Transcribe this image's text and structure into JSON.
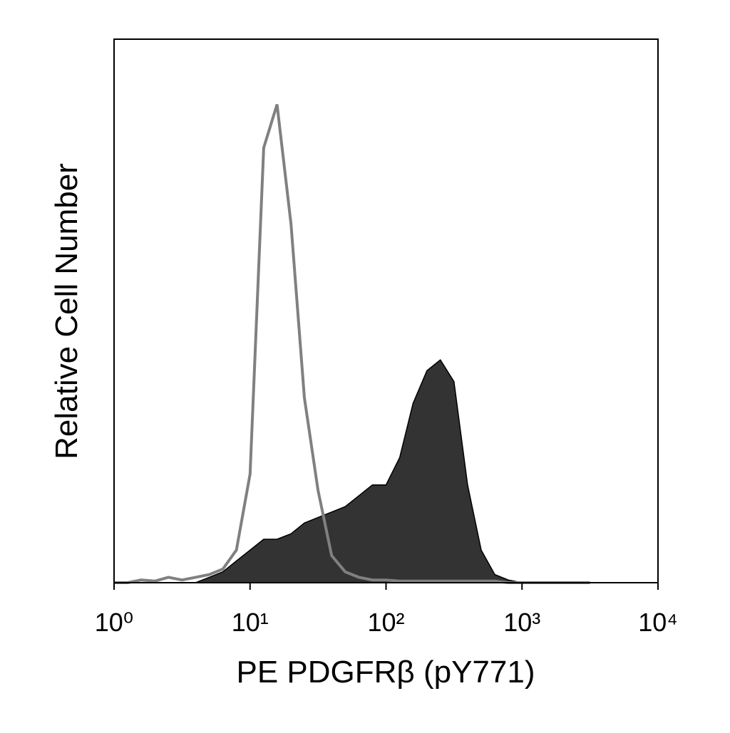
{
  "chart_data": {
    "type": "histogram-overlay",
    "xlabel": "PE PDGFRβ (pY771)",
    "ylabel": "Relative Cell Number",
    "xscale": "log",
    "xlim": [
      1,
      10000
    ],
    "ylim": [
      0,
      100
    ],
    "xticks": [
      {
        "value": 1,
        "label": "10⁰"
      },
      {
        "value": 10,
        "label": "10¹"
      },
      {
        "value": 100,
        "label": "10²"
      },
      {
        "value": 1000,
        "label": "10³"
      },
      {
        "value": 10000,
        "label": "10⁴"
      }
    ],
    "x": [
      1,
      1.26,
      1.58,
      2,
      2.51,
      3.16,
      3.98,
      5.01,
      6.31,
      7.94,
      10,
      12.6,
      15.8,
      20,
      25.1,
      31.6,
      39.8,
      50.1,
      63.1,
      79.4,
      100,
      126,
      158,
      200,
      251,
      316,
      398,
      501,
      631,
      794,
      1000,
      1260,
      1580,
      2000,
      2510,
      3160
    ],
    "series": [
      {
        "color": "#333333",
        "fill": true,
        "values": [
          0,
          0,
          0,
          0,
          0,
          0,
          0,
          1,
          2,
          4,
          6,
          8,
          8,
          9,
          11,
          12,
          13,
          14,
          16,
          18,
          18,
          23,
          33,
          39,
          41,
          37,
          18,
          6,
          1.5,
          0.5,
          0,
          0,
          0,
          0,
          0,
          0
        ]
      },
      {
        "color": "#808080",
        "fill": false,
        "values": [
          0,
          0,
          0.5,
          0.3,
          1,
          0.5,
          1,
          1.5,
          2.5,
          6,
          20,
          80,
          88,
          66,
          34,
          17,
          5,
          2,
          1,
          0.5,
          0.5,
          0.3,
          0.3,
          0.3,
          0.3,
          0.3,
          0.3,
          0.3,
          0.3,
          0,
          0,
          0,
          0,
          0,
          0,
          0
        ]
      }
    ]
  }
}
